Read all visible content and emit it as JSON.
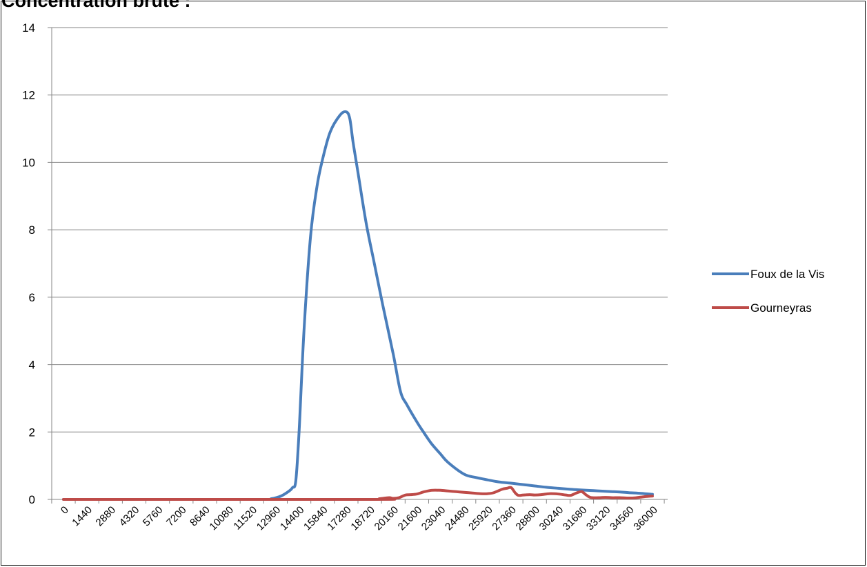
{
  "title": "Concentration brute :",
  "chart_data": {
    "type": "line",
    "title": "Concentration brute :",
    "xlabel": "",
    "ylabel": "",
    "ylim": [
      0,
      14
    ],
    "y_ticks": [
      0,
      2,
      4,
      6,
      8,
      10,
      12,
      14
    ],
    "x_ticks": [
      0,
      1440,
      2880,
      4320,
      5760,
      7200,
      8640,
      10080,
      11520,
      12960,
      14400,
      15840,
      17280,
      18720,
      20160,
      21600,
      23040,
      24480,
      25920,
      27360,
      28800,
      30240,
      31680,
      33120,
      34560,
      36000
    ],
    "grid": true,
    "legend": "right",
    "series": [
      {
        "name": "Foux de la Vis",
        "color": "#4a7ebb",
        "x": [
          0,
          12000,
          12700,
          13300,
          13800,
          14000,
          14200,
          14400,
          14700,
          15100,
          15500,
          15840,
          16300,
          16900,
          17280,
          17500,
          17700,
          18000,
          18500,
          19000,
          19500,
          20160,
          20600,
          21000,
          21600,
          22000,
          22500,
          23040,
          23500,
          24480,
          25200,
          25920,
          26600,
          27360,
          28080,
          28800,
          29500,
          30240,
          31000,
          31680,
          32400,
          33120,
          34000,
          34560,
          35300,
          36000
        ],
        "y": [
          0,
          0,
          0.02,
          0.1,
          0.25,
          0.35,
          0.55,
          2.0,
          5.0,
          7.8,
          9.3,
          10.1,
          10.9,
          11.4,
          11.5,
          11.3,
          10.6,
          9.7,
          8.2,
          7.0,
          5.8,
          4.3,
          3.2,
          2.8,
          2.3,
          2.0,
          1.65,
          1.35,
          1.1,
          0.75,
          0.65,
          0.58,
          0.52,
          0.48,
          0.44,
          0.4,
          0.36,
          0.33,
          0.3,
          0.28,
          0.26,
          0.24,
          0.22,
          0.2,
          0.18,
          0.15
        ]
      },
      {
        "name": "Gourneyras",
        "color": "#be4b48",
        "x": [
          0,
          18720,
          19300,
          19900,
          20160,
          20500,
          20900,
          21200,
          21600,
          22000,
          22500,
          23040,
          23500,
          24000,
          24480,
          25000,
          25500,
          25920,
          26300,
          26800,
          27100,
          27360,
          27600,
          27800,
          28100,
          28500,
          28800,
          29200,
          29700,
          30240,
          30700,
          31000,
          31400,
          31680,
          31900,
          32200,
          32700,
          33120,
          33500,
          34000,
          34560,
          35000,
          35500,
          36000
        ],
        "y": [
          0,
          0,
          0.02,
          0.05,
          0.03,
          0.05,
          0.13,
          0.14,
          0.16,
          0.22,
          0.27,
          0.27,
          0.25,
          0.23,
          0.21,
          0.19,
          0.17,
          0.17,
          0.2,
          0.3,
          0.33,
          0.35,
          0.2,
          0.12,
          0.13,
          0.14,
          0.13,
          0.14,
          0.17,
          0.16,
          0.13,
          0.12,
          0.2,
          0.23,
          0.15,
          0.06,
          0.05,
          0.06,
          0.05,
          0.05,
          0.04,
          0.05,
          0.08,
          0.1
        ]
      }
    ]
  }
}
